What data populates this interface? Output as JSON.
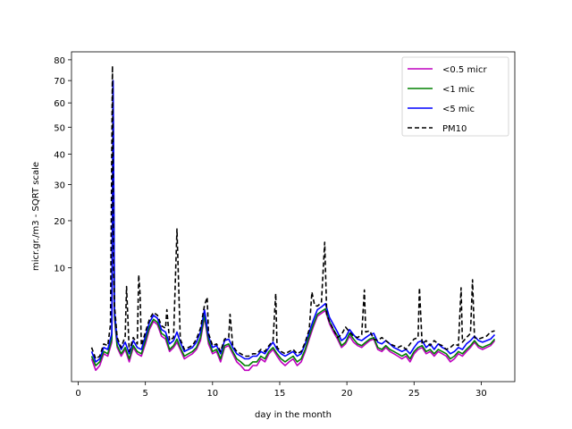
{
  "chart_data": {
    "type": "line",
    "title": "",
    "xlabel": "day in the month",
    "ylabel": "micr.gr./m3 - SQRT scale",
    "y_scale": "sqrt",
    "xlim": [
      -0.5,
      32.5
    ],
    "ylim": [
      0,
      84
    ],
    "x_ticks": [
      0,
      5,
      10,
      15,
      20,
      25,
      30
    ],
    "y_ticks": [
      10,
      20,
      30,
      40,
      50,
      60,
      70,
      80
    ],
    "grid": false,
    "legend_position": "top-right",
    "series": [
      {
        "name": "<0.5 micr",
        "color": "#bf00bf",
        "style": "solid",
        "x": [
          1.0,
          1.3,
          1.6,
          1.9,
          2.2,
          2.5,
          2.6,
          2.7,
          2.9,
          3.2,
          3.5,
          3.8,
          4.1,
          4.4,
          4.7,
          5.0,
          5.3,
          5.6,
          5.9,
          6.2,
          6.5,
          6.8,
          7.1,
          7.35,
          7.6,
          7.9,
          8.2,
          8.5,
          8.8,
          9.1,
          9.4,
          9.7,
          10.0,
          10.3,
          10.6,
          10.9,
          11.2,
          11.5,
          11.8,
          12.1,
          12.4,
          12.7,
          13.0,
          13.3,
          13.6,
          13.9,
          14.2,
          14.5,
          14.8,
          15.1,
          15.4,
          15.7,
          16.0,
          16.3,
          16.6,
          16.9,
          17.2,
          17.5,
          17.8,
          18.1,
          18.4,
          18.7,
          19.0,
          19.3,
          19.6,
          19.9,
          20.2,
          20.5,
          20.8,
          21.1,
          21.4,
          21.7,
          22.0,
          22.3,
          22.6,
          22.9,
          23.2,
          23.5,
          23.8,
          24.1,
          24.4,
          24.7,
          25.0,
          25.3,
          25.6,
          25.9,
          26.2,
          26.5,
          26.8,
          27.1,
          27.4,
          27.7,
          28.0,
          28.3,
          28.6,
          28.9,
          29.2,
          29.5,
          29.8,
          30.1,
          30.4,
          30.7,
          31.0
        ],
        "y": [
          0.4,
          0.1,
          0.2,
          0.6,
          0.5,
          1.2,
          62,
          3.0,
          0.9,
          0.5,
          0.8,
          0.3,
          0.9,
          0.6,
          0.5,
          1.1,
          2.1,
          2.8,
          2.5,
          1.6,
          1.4,
          0.7,
          0.9,
          1.2,
          0.8,
          0.4,
          0.5,
          0.6,
          0.8,
          1.3,
          3.2,
          1.1,
          0.6,
          0.7,
          0.3,
          0.9,
          1.0,
          0.6,
          0.3,
          0.2,
          0.1,
          0.1,
          0.2,
          0.2,
          0.4,
          0.3,
          0.6,
          0.8,
          0.5,
          0.3,
          0.2,
          0.3,
          0.4,
          0.2,
          0.3,
          0.7,
          1.4,
          2.3,
          3.3,
          3.6,
          3.9,
          2.6,
          1.9,
          1.4,
          0.9,
          1.1,
          1.6,
          1.2,
          1.0,
          0.9,
          1.1,
          1.3,
          1.4,
          0.8,
          0.7,
          0.9,
          0.7,
          0.6,
          0.5,
          0.4,
          0.5,
          0.3,
          0.6,
          0.8,
          0.9,
          0.6,
          0.7,
          0.5,
          0.7,
          0.6,
          0.5,
          0.3,
          0.4,
          0.6,
          0.5,
          0.7,
          0.9,
          1.2,
          0.9,
          0.8,
          0.9,
          1.0,
          1.3
        ]
      },
      {
        "name": "<1 mic",
        "color": "#008000",
        "style": "solid",
        "x": [
          1.0,
          1.3,
          1.6,
          1.9,
          2.2,
          2.5,
          2.6,
          2.7,
          2.9,
          3.2,
          3.5,
          3.8,
          4.1,
          4.4,
          4.7,
          5.0,
          5.3,
          5.6,
          5.9,
          6.2,
          6.5,
          6.8,
          7.1,
          7.35,
          7.6,
          7.9,
          8.2,
          8.5,
          8.8,
          9.1,
          9.4,
          9.7,
          10.0,
          10.3,
          10.6,
          10.9,
          11.2,
          11.5,
          11.8,
          12.1,
          12.4,
          12.7,
          13.0,
          13.3,
          13.6,
          13.9,
          14.2,
          14.5,
          14.8,
          15.1,
          15.4,
          15.7,
          16.0,
          16.3,
          16.6,
          16.9,
          17.2,
          17.5,
          17.8,
          18.1,
          18.4,
          18.7,
          19.0,
          19.3,
          19.6,
          19.9,
          20.2,
          20.5,
          20.8,
          21.1,
          21.4,
          21.7,
          22.0,
          22.3,
          22.6,
          22.9,
          23.2,
          23.5,
          23.8,
          24.1,
          24.4,
          24.7,
          25.0,
          25.3,
          25.6,
          25.9,
          26.2,
          26.5,
          26.8,
          27.1,
          27.4,
          27.7,
          28.0,
          28.3,
          28.6,
          28.9,
          29.2,
          29.5,
          29.8,
          30.1,
          30.4,
          30.7,
          31.0
        ],
        "y": [
          0.5,
          0.2,
          0.3,
          0.7,
          0.6,
          1.4,
          64,
          3.3,
          1.0,
          0.6,
          0.9,
          0.4,
          1.0,
          0.7,
          0.6,
          1.3,
          2.3,
          3.0,
          2.7,
          1.8,
          1.6,
          0.8,
          1.0,
          1.4,
          0.9,
          0.5,
          0.6,
          0.7,
          0.9,
          1.5,
          3.4,
          1.3,
          0.7,
          0.8,
          0.4,
          1.0,
          1.1,
          0.7,
          0.4,
          0.3,
          0.2,
          0.2,
          0.3,
          0.3,
          0.5,
          0.4,
          0.7,
          0.9,
          0.6,
          0.4,
          0.3,
          0.4,
          0.5,
          0.3,
          0.4,
          0.8,
          1.6,
          2.5,
          3.5,
          3.8,
          4.1,
          2.8,
          2.1,
          1.6,
          1.0,
          1.2,
          1.8,
          1.4,
          1.1,
          1.0,
          1.2,
          1.4,
          1.5,
          0.9,
          0.8,
          1.0,
          0.8,
          0.7,
          0.6,
          0.5,
          0.6,
          0.4,
          0.7,
          0.9,
          1.0,
          0.7,
          0.8,
          0.6,
          0.8,
          0.7,
          0.6,
          0.4,
          0.5,
          0.7,
          0.6,
          0.8,
          1.0,
          1.3,
          1.0,
          0.9,
          1.0,
          1.1,
          1.4
        ]
      },
      {
        "name": "<5 mic",
        "color": "#0000ff",
        "style": "solid",
        "x": [
          1.0,
          1.3,
          1.6,
          1.9,
          2.2,
          2.5,
          2.6,
          2.7,
          2.9,
          3.2,
          3.5,
          3.8,
          4.1,
          4.4,
          4.7,
          5.0,
          5.3,
          5.6,
          5.9,
          6.2,
          6.5,
          6.8,
          7.1,
          7.35,
          7.6,
          7.9,
          8.2,
          8.5,
          8.8,
          9.1,
          9.4,
          9.7,
          10.0,
          10.3,
          10.6,
          10.9,
          11.2,
          11.5,
          11.8,
          12.1,
          12.4,
          12.7,
          13.0,
          13.3,
          13.6,
          13.9,
          14.2,
          14.5,
          14.8,
          15.1,
          15.4,
          15.7,
          16.0,
          16.3,
          16.6,
          16.9,
          17.2,
          17.5,
          17.8,
          18.1,
          18.4,
          18.7,
          19.0,
          19.3,
          19.6,
          19.9,
          20.2,
          20.5,
          20.8,
          21.1,
          21.4,
          21.7,
          22.0,
          22.3,
          22.6,
          22.9,
          23.2,
          23.5,
          23.8,
          24.1,
          24.4,
          24.7,
          25.0,
          25.3,
          25.6,
          25.9,
          26.2,
          26.5,
          26.8,
          27.1,
          27.4,
          27.7,
          28.0,
          28.3,
          28.6,
          28.9,
          29.2,
          29.5,
          29.8,
          30.1,
          30.4,
          30.7,
          31.0
        ],
        "y": [
          0.7,
          0.3,
          0.4,
          0.9,
          0.8,
          1.8,
          70,
          3.9,
          1.3,
          0.8,
          1.2,
          0.6,
          1.3,
          0.9,
          0.8,
          1.6,
          2.7,
          3.4,
          3.1,
          2.1,
          1.9,
          1.1,
          1.3,
          1.9,
          1.2,
          0.7,
          0.8,
          0.9,
          1.2,
          1.9,
          4.0,
          1.6,
          0.9,
          1.0,
          0.6,
          1.3,
          1.4,
          0.9,
          0.6,
          0.5,
          0.4,
          0.4,
          0.5,
          0.5,
          0.7,
          0.6,
          0.9,
          1.2,
          0.8,
          0.6,
          0.5,
          0.6,
          0.7,
          0.5,
          0.6,
          1.1,
          1.9,
          2.9,
          4.0,
          4.3,
          4.7,
          3.2,
          2.5,
          1.9,
          1.3,
          1.5,
          2.1,
          1.7,
          1.4,
          1.3,
          1.5,
          1.7,
          1.8,
          1.2,
          1.1,
          1.3,
          1.1,
          0.9,
          0.8,
          0.7,
          0.8,
          0.6,
          0.9,
          1.2,
          1.3,
          0.9,
          1.1,
          0.8,
          1.1,
          0.9,
          0.8,
          0.6,
          0.7,
          0.9,
          0.8,
          1.1,
          1.3,
          1.6,
          1.3,
          1.2,
          1.3,
          1.4,
          1.7
        ]
      },
      {
        "name": "PM10",
        "color": "#000000",
        "style": "dashed",
        "x": [
          1.0,
          1.3,
          1.6,
          1.9,
          2.2,
          2.4,
          2.55,
          2.62,
          2.7,
          2.9,
          3.2,
          3.5,
          3.6,
          3.8,
          4.1,
          4.4,
          4.5,
          4.6,
          4.7,
          5.0,
          5.3,
          5.6,
          5.9,
          6.2,
          6.5,
          6.6,
          6.8,
          7.1,
          7.35,
          7.45,
          7.6,
          7.9,
          8.2,
          8.5,
          8.8,
          9.1,
          9.4,
          9.6,
          9.7,
          10.0,
          10.3,
          10.6,
          10.9,
          11.2,
          11.3,
          11.5,
          11.8,
          12.1,
          12.4,
          12.7,
          13.0,
          13.3,
          13.6,
          13.9,
          14.2,
          14.5,
          14.7,
          14.8,
          15.1,
          15.4,
          15.7,
          16.0,
          16.3,
          16.6,
          16.9,
          17.2,
          17.4,
          17.6,
          17.8,
          18.1,
          18.35,
          18.5,
          18.7,
          19.0,
          19.3,
          19.6,
          19.9,
          20.2,
          20.5,
          20.8,
          21.1,
          21.3,
          21.4,
          21.7,
          22.0,
          22.3,
          22.6,
          22.9,
          23.2,
          23.5,
          23.8,
          24.1,
          24.4,
          24.7,
          25.0,
          25.3,
          25.4,
          25.6,
          25.9,
          26.2,
          26.5,
          26.8,
          27.1,
          27.4,
          27.7,
          28.0,
          28.3,
          28.5,
          28.6,
          28.9,
          29.2,
          29.35,
          29.5,
          29.8,
          30.1,
          30.4,
          30.7,
          31.0
        ],
        "y": [
          0.9,
          0.4,
          0.5,
          1.1,
          1.0,
          2.5,
          77,
          12,
          4.5,
          1.5,
          0.9,
          1.6,
          7.0,
          0.7,
          1.5,
          1.1,
          8.8,
          6.0,
          1.0,
          1.9,
          3.0,
          3.7,
          3.4,
          2.4,
          2.2,
          4.0,
          1.3,
          1.5,
          18,
          9.0,
          1.4,
          0.8,
          0.9,
          1.0,
          1.4,
          2.2,
          4.5,
          5.5,
          1.8,
          1.0,
          1.1,
          0.7,
          1.4,
          1.5,
          3.5,
          1.0,
          0.7,
          0.6,
          0.5,
          0.5,
          0.6,
          0.6,
          0.8,
          0.7,
          1.0,
          1.3,
          6.0,
          0.9,
          0.7,
          0.6,
          0.7,
          0.8,
          0.6,
          0.7,
          1.2,
          2.1,
          6.2,
          4.5,
          4.4,
          4.8,
          15,
          3.5,
          2.8,
          2.1,
          1.5,
          1.7,
          2.3,
          1.9,
          1.6,
          1.5,
          1.7,
          6.5,
          1.9,
          2.0,
          1.4,
          1.3,
          1.5,
          1.3,
          1.1,
          1.0,
          0.9,
          1.0,
          0.8,
          1.1,
          1.4,
          1.5,
          6.8,
          1.1,
          1.3,
          1.0,
          1.3,
          1.1,
          1.0,
          0.8,
          0.9,
          1.1,
          1.0,
          6.8,
          1.2,
          1.5,
          1.8,
          8.0,
          1.5,
          1.4,
          1.5,
          1.6,
          1.9,
          2.0
        ]
      }
    ]
  }
}
